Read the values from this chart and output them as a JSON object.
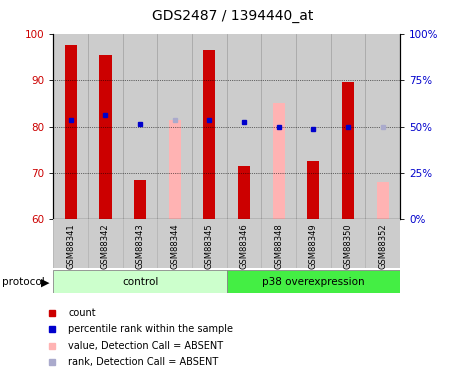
{
  "title": "GDS2487 / 1394440_at",
  "samples": [
    "GSM88341",
    "GSM88342",
    "GSM88343",
    "GSM88344",
    "GSM88345",
    "GSM88346",
    "GSM88348",
    "GSM88349",
    "GSM88350",
    "GSM88352"
  ],
  "red_bars": [
    97.5,
    95.5,
    68.5,
    null,
    96.5,
    71.5,
    null,
    72.5,
    89.5,
    null
  ],
  "pink_bars": [
    null,
    null,
    null,
    81.5,
    null,
    null,
    85.0,
    null,
    null,
    68.0
  ],
  "blue_squares": [
    81.5,
    82.5,
    80.5,
    null,
    81.5,
    81.0,
    80.0,
    79.5,
    80.0,
    null
  ],
  "lightblue_squares": [
    null,
    null,
    null,
    81.5,
    null,
    null,
    null,
    null,
    null,
    80.0
  ],
  "ylim": [
    60,
    100
  ],
  "y_left_ticks": [
    60,
    70,
    80,
    90,
    100
  ],
  "y_right_ticks": [
    0,
    25,
    50,
    75,
    100
  ],
  "y_right_tick_positions": [
    60,
    70,
    80,
    90,
    100
  ],
  "control_label": "control",
  "overexp_label": "p38 overexpression",
  "protocol_label": "protocol",
  "red_color": "#cc0000",
  "pink_color": "#ffb3b3",
  "blue_color": "#0000cc",
  "lightblue_color": "#aaaacc",
  "control_bg_light": "#ccffcc",
  "overexp_bg": "#44ee44",
  "sample_bg": "#cccccc",
  "title_fontsize": 10,
  "tick_fontsize": 7.5,
  "legend_fontsize": 7
}
